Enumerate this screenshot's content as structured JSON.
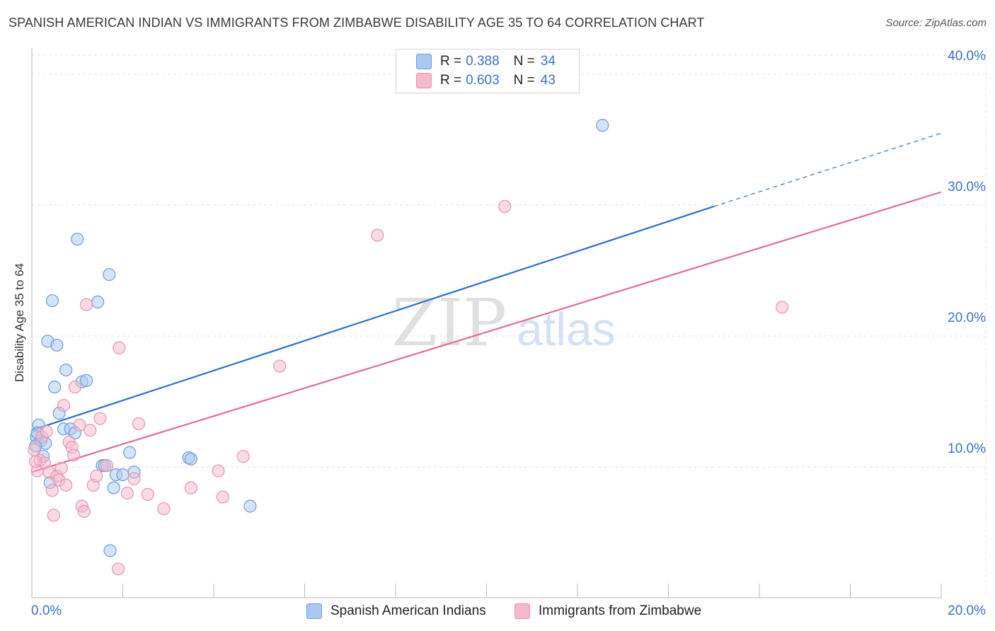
{
  "header": {
    "title": "SPANISH AMERICAN INDIAN VS IMMIGRANTS FROM ZIMBABWE DISABILITY AGE 35 TO 64 CORRELATION CHART",
    "source": "Source: ZipAtlas.com"
  },
  "watermark": {
    "zip": "ZIP",
    "atlas": "atlas"
  },
  "legend": {
    "r_label": "R =",
    "n_label": "N =",
    "rows": [
      {
        "r": "0.388",
        "n": "34"
      },
      {
        "r": "0.603",
        "n": "43"
      }
    ]
  },
  "colors": {
    "blue_fill": "#aac8f0",
    "blue_stroke": "#6e9edc",
    "blue_line": "#2d6fd0",
    "pink_fill": "#f6b8cc",
    "pink_stroke": "#e894b0",
    "pink_line": "#e36c95",
    "tick_text": "#3a72c8",
    "grid": "#e2e2e2"
  },
  "chart_data": {
    "type": "scatter",
    "title": "SPANISH AMERICAN INDIAN VS IMMIGRANTS FROM ZIMBABWE DISABILITY AGE 35 TO 64 CORRELATION CHART",
    "xlabel": "",
    "ylabel": "Disability Age 35 to 64",
    "xlim": [
      0,
      20
    ],
    "ylim": [
      0,
      42
    ],
    "x_tick_labels": [
      "0.0%",
      "20.0%"
    ],
    "y_ticks": [
      10,
      20,
      30,
      40
    ],
    "y_tick_labels": [
      "10.0%",
      "20.0%",
      "30.0%",
      "40.0%"
    ],
    "grid": true,
    "legend_position": "bottom",
    "series": [
      {
        "name": "Spanish American Indians",
        "r": 0.388,
        "n": 34,
        "points": [
          [
            0.1,
            12.3
          ],
          [
            0.15,
            13.2
          ],
          [
            0.2,
            12.0
          ],
          [
            0.25,
            10.8
          ],
          [
            0.3,
            11.8
          ],
          [
            0.35,
            19.6
          ],
          [
            0.4,
            8.8
          ],
          [
            0.45,
            22.7
          ],
          [
            0.5,
            16.1
          ],
          [
            0.55,
            19.3
          ],
          [
            0.6,
            14.1
          ],
          [
            0.7,
            12.9
          ],
          [
            0.75,
            17.4
          ],
          [
            0.85,
            12.9
          ],
          [
            0.95,
            12.6
          ],
          [
            1.0,
            27.4
          ],
          [
            1.1,
            16.5
          ],
          [
            1.2,
            16.6
          ],
          [
            1.45,
            22.6
          ],
          [
            1.55,
            10.1
          ],
          [
            1.6,
            10.1
          ],
          [
            1.7,
            24.7
          ],
          [
            1.72,
            3.6
          ],
          [
            1.8,
            8.4
          ],
          [
            1.85,
            9.4
          ],
          [
            2.0,
            9.4
          ],
          [
            2.15,
            11.1
          ],
          [
            2.25,
            9.6
          ],
          [
            3.45,
            10.7
          ],
          [
            3.5,
            10.6
          ],
          [
            4.8,
            7.0
          ],
          [
            12.55,
            36.1
          ],
          [
            0.08,
            11.6
          ],
          [
            0.12,
            12.6
          ]
        ],
        "trend": {
          "x": [
            0,
            15
          ],
          "y": [
            12.8,
            29.9
          ]
        },
        "trend_dashed": {
          "x": [
            15,
            20
          ],
          "y": [
            29.9,
            35.5
          ]
        }
      },
      {
        "name": "Immigrants from Zimbabwe",
        "r": 0.603,
        "n": 43,
        "points": [
          [
            0.05,
            11.3
          ],
          [
            0.12,
            9.7
          ],
          [
            0.18,
            10.5
          ],
          [
            0.22,
            12.3
          ],
          [
            0.28,
            10.3
          ],
          [
            0.32,
            12.7
          ],
          [
            0.38,
            9.6
          ],
          [
            0.45,
            8.2
          ],
          [
            0.48,
            6.3
          ],
          [
            0.55,
            9.3
          ],
          [
            0.6,
            9.0
          ],
          [
            0.65,
            9.9
          ],
          [
            0.7,
            14.7
          ],
          [
            0.75,
            8.6
          ],
          [
            0.82,
            11.9
          ],
          [
            0.88,
            11.5
          ],
          [
            0.92,
            10.9
          ],
          [
            0.95,
            16.1
          ],
          [
            1.05,
            13.2
          ],
          [
            1.1,
            7.0
          ],
          [
            1.15,
            6.6
          ],
          [
            1.2,
            22.4
          ],
          [
            1.28,
            12.8
          ],
          [
            1.35,
            8.6
          ],
          [
            1.42,
            9.3
          ],
          [
            1.5,
            13.7
          ],
          [
            1.65,
            10.1
          ],
          [
            1.9,
            2.2
          ],
          [
            1.92,
            19.1
          ],
          [
            2.1,
            8.0
          ],
          [
            2.25,
            9.1
          ],
          [
            2.35,
            13.3
          ],
          [
            2.55,
            7.9
          ],
          [
            2.9,
            6.8
          ],
          [
            3.5,
            8.4
          ],
          [
            4.1,
            9.7
          ],
          [
            4.2,
            7.7
          ],
          [
            4.65,
            10.8
          ],
          [
            5.45,
            17.7
          ],
          [
            7.6,
            27.7
          ],
          [
            10.4,
            29.9
          ],
          [
            16.5,
            22.2
          ],
          [
            0.08,
            10.4
          ]
        ],
        "trend": {
          "x": [
            0,
            20
          ],
          "y": [
            9.6,
            31.0
          ]
        }
      }
    ]
  }
}
